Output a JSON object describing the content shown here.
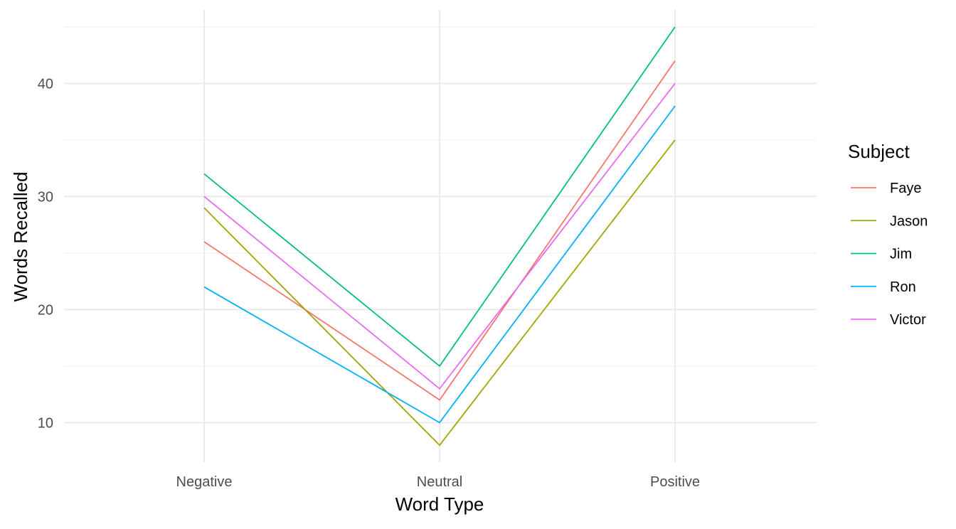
{
  "chart_data": {
    "type": "line",
    "title": "",
    "xlabel": "Word Type",
    "ylabel": "Words Recalled",
    "categories": [
      "Negative",
      "Neutral",
      "Positive"
    ],
    "ylim": [
      6.5,
      46.5
    ],
    "yticks": [
      10,
      20,
      30,
      40
    ],
    "grid": true,
    "legend": {
      "title": "Subject",
      "placement": "right"
    },
    "series": [
      {
        "name": "Faye",
        "color": "#F8766D",
        "values": [
          26,
          12,
          42
        ]
      },
      {
        "name": "Jason",
        "color": "#A3A500",
        "values": [
          29,
          8,
          35
        ]
      },
      {
        "name": "Jim",
        "color": "#00BF7D",
        "values": [
          32,
          15,
          45
        ]
      },
      {
        "name": "Ron",
        "color": "#00B0F6",
        "values": [
          22,
          10,
          38
        ]
      },
      {
        "name": "Victor",
        "color": "#E76BF3",
        "values": [
          30,
          13,
          40
        ]
      }
    ]
  }
}
